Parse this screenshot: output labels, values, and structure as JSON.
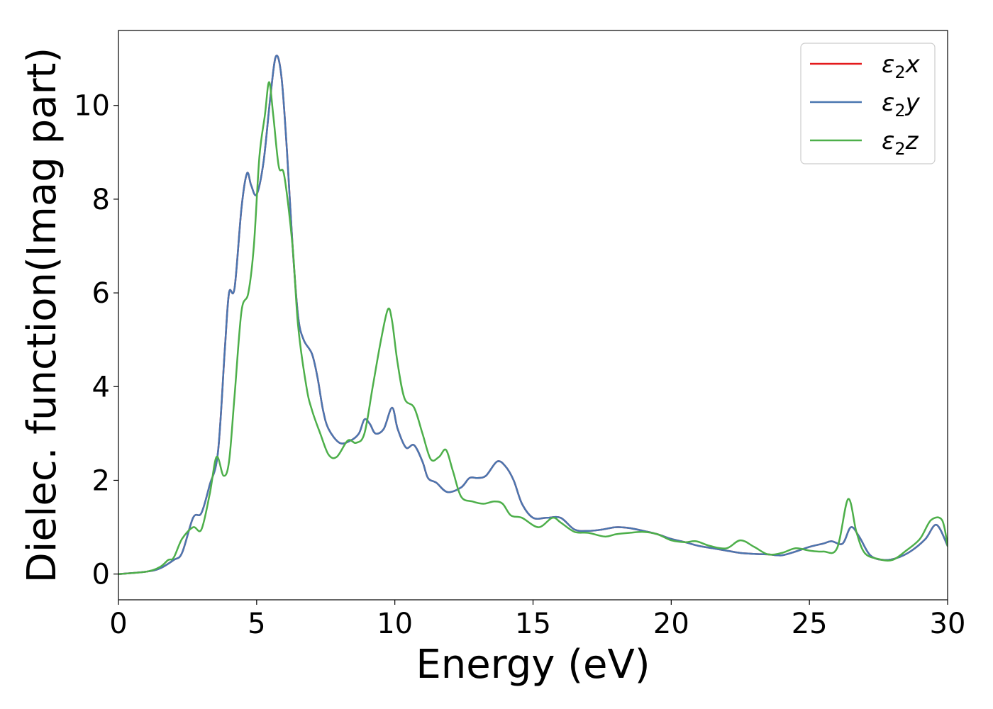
{
  "chart_data": {
    "type": "line",
    "title": "",
    "xlabel": "Energy (eV)",
    "ylabel": "Dielec. function(Imag part)",
    "xlim": [
      0,
      30
    ],
    "ylim": [
      -0.55,
      11.6
    ],
    "xticks": [
      0,
      5,
      10,
      15,
      20,
      25,
      30
    ],
    "yticks": [
      0,
      2,
      4,
      6,
      8,
      10
    ],
    "legend_position": "top-right",
    "grid": false,
    "series": [
      {
        "name": "ε2x",
        "legend_main": "ε",
        "legend_sub": "2",
        "legend_var": "x",
        "color": "#e41a1c",
        "points": [
          [
            0,
            0
          ],
          [
            1,
            0.05
          ],
          [
            1.5,
            0.12
          ],
          [
            2,
            0.3
          ],
          [
            2.3,
            0.45
          ],
          [
            2.7,
            1.2
          ],
          [
            3.0,
            1.3
          ],
          [
            3.3,
            1.9
          ],
          [
            3.6,
            2.6
          ],
          [
            3.85,
            4.8
          ],
          [
            4.0,
            6.0
          ],
          [
            4.2,
            6.1
          ],
          [
            4.45,
            7.8
          ],
          [
            4.65,
            8.55
          ],
          [
            4.8,
            8.3
          ],
          [
            5.0,
            8.1
          ],
          [
            5.25,
            8.8
          ],
          [
            5.5,
            10.2
          ],
          [
            5.7,
            11.05
          ],
          [
            5.9,
            10.6
          ],
          [
            6.1,
            9.0
          ],
          [
            6.3,
            7.0
          ],
          [
            6.5,
            5.5
          ],
          [
            6.7,
            5.0
          ],
          [
            7.0,
            4.7
          ],
          [
            7.2,
            4.2
          ],
          [
            7.4,
            3.5
          ],
          [
            7.6,
            3.1
          ],
          [
            8.0,
            2.8
          ],
          [
            8.4,
            2.85
          ],
          [
            8.7,
            3.0
          ],
          [
            8.9,
            3.3
          ],
          [
            9.1,
            3.2
          ],
          [
            9.3,
            3.0
          ],
          [
            9.6,
            3.1
          ],
          [
            9.9,
            3.55
          ],
          [
            10.1,
            3.1
          ],
          [
            10.4,
            2.7
          ],
          [
            10.7,
            2.75
          ],
          [
            11.0,
            2.4
          ],
          [
            11.2,
            2.05
          ],
          [
            11.5,
            1.95
          ],
          [
            11.9,
            1.75
          ],
          [
            12.4,
            1.85
          ],
          [
            12.7,
            2.05
          ],
          [
            13.0,
            2.05
          ],
          [
            13.3,
            2.1
          ],
          [
            13.7,
            2.4
          ],
          [
            14.0,
            2.3
          ],
          [
            14.3,
            2.0
          ],
          [
            14.6,
            1.5
          ],
          [
            15.0,
            1.2
          ],
          [
            15.5,
            1.2
          ],
          [
            16.0,
            1.2
          ],
          [
            16.5,
            0.95
          ],
          [
            17.0,
            0.92
          ],
          [
            17.5,
            0.95
          ],
          [
            18.0,
            1.0
          ],
          [
            18.5,
            0.98
          ],
          [
            19.0,
            0.92
          ],
          [
            19.5,
            0.85
          ],
          [
            20.0,
            0.75
          ],
          [
            20.5,
            0.68
          ],
          [
            21.0,
            0.6
          ],
          [
            21.5,
            0.55
          ],
          [
            22.0,
            0.5
          ],
          [
            22.5,
            0.45
          ],
          [
            23.0,
            0.43
          ],
          [
            23.5,
            0.42
          ],
          [
            24.0,
            0.4
          ],
          [
            24.5,
            0.48
          ],
          [
            25.0,
            0.58
          ],
          [
            25.5,
            0.65
          ],
          [
            25.8,
            0.7
          ],
          [
            26.2,
            0.65
          ],
          [
            26.5,
            1.0
          ],
          [
            26.8,
            0.8
          ],
          [
            27.2,
            0.4
          ],
          [
            27.7,
            0.3
          ],
          [
            28.2,
            0.35
          ],
          [
            28.7,
            0.5
          ],
          [
            29.2,
            0.75
          ],
          [
            29.6,
            1.05
          ],
          [
            30.0,
            0.6
          ]
        ]
      },
      {
        "name": "ε2y",
        "legend_main": "ε",
        "legend_sub": "2",
        "legend_var": "y",
        "color": "#4a76b0",
        "points": [
          [
            0,
            0
          ],
          [
            1,
            0.05
          ],
          [
            1.5,
            0.12
          ],
          [
            2,
            0.3
          ],
          [
            2.3,
            0.45
          ],
          [
            2.7,
            1.2
          ],
          [
            3.0,
            1.3
          ],
          [
            3.3,
            1.9
          ],
          [
            3.6,
            2.6
          ],
          [
            3.85,
            4.8
          ],
          [
            4.0,
            6.0
          ],
          [
            4.2,
            6.1
          ],
          [
            4.45,
            7.8
          ],
          [
            4.65,
            8.55
          ],
          [
            4.8,
            8.3
          ],
          [
            5.0,
            8.1
          ],
          [
            5.25,
            8.8
          ],
          [
            5.5,
            10.2
          ],
          [
            5.7,
            11.05
          ],
          [
            5.9,
            10.6
          ],
          [
            6.1,
            9.0
          ],
          [
            6.3,
            7.0
          ],
          [
            6.5,
            5.5
          ],
          [
            6.7,
            5.0
          ],
          [
            7.0,
            4.7
          ],
          [
            7.2,
            4.2
          ],
          [
            7.4,
            3.5
          ],
          [
            7.6,
            3.1
          ],
          [
            8.0,
            2.8
          ],
          [
            8.4,
            2.85
          ],
          [
            8.7,
            3.0
          ],
          [
            8.9,
            3.3
          ],
          [
            9.1,
            3.2
          ],
          [
            9.3,
            3.0
          ],
          [
            9.6,
            3.1
          ],
          [
            9.9,
            3.55
          ],
          [
            10.1,
            3.1
          ],
          [
            10.4,
            2.7
          ],
          [
            10.7,
            2.75
          ],
          [
            11.0,
            2.4
          ],
          [
            11.2,
            2.05
          ],
          [
            11.5,
            1.95
          ],
          [
            11.9,
            1.75
          ],
          [
            12.4,
            1.85
          ],
          [
            12.7,
            2.05
          ],
          [
            13.0,
            2.05
          ],
          [
            13.3,
            2.1
          ],
          [
            13.7,
            2.4
          ],
          [
            14.0,
            2.3
          ],
          [
            14.3,
            2.0
          ],
          [
            14.6,
            1.5
          ],
          [
            15.0,
            1.2
          ],
          [
            15.5,
            1.2
          ],
          [
            16.0,
            1.2
          ],
          [
            16.5,
            0.95
          ],
          [
            17.0,
            0.92
          ],
          [
            17.5,
            0.95
          ],
          [
            18.0,
            1.0
          ],
          [
            18.5,
            0.98
          ],
          [
            19.0,
            0.92
          ],
          [
            19.5,
            0.85
          ],
          [
            20.0,
            0.75
          ],
          [
            20.5,
            0.68
          ],
          [
            21.0,
            0.6
          ],
          [
            21.5,
            0.55
          ],
          [
            22.0,
            0.5
          ],
          [
            22.5,
            0.45
          ],
          [
            23.0,
            0.43
          ],
          [
            23.5,
            0.42
          ],
          [
            24.0,
            0.4
          ],
          [
            24.5,
            0.48
          ],
          [
            25.0,
            0.58
          ],
          [
            25.5,
            0.65
          ],
          [
            25.8,
            0.7
          ],
          [
            26.2,
            0.65
          ],
          [
            26.5,
            1.0
          ],
          [
            26.8,
            0.8
          ],
          [
            27.2,
            0.4
          ],
          [
            27.7,
            0.3
          ],
          [
            28.2,
            0.35
          ],
          [
            28.7,
            0.5
          ],
          [
            29.2,
            0.75
          ],
          [
            29.6,
            1.05
          ],
          [
            30.0,
            0.6
          ]
        ]
      },
      {
        "name": "ε2z",
        "legend_main": "ε",
        "legend_sub": "2",
        "legend_var": "z",
        "color": "#4daf4a",
        "points": [
          [
            0,
            0
          ],
          [
            1,
            0.05
          ],
          [
            1.5,
            0.15
          ],
          [
            1.8,
            0.3
          ],
          [
            2.0,
            0.35
          ],
          [
            2.3,
            0.75
          ],
          [
            2.7,
            1.0
          ],
          [
            3.0,
            0.95
          ],
          [
            3.3,
            1.7
          ],
          [
            3.55,
            2.5
          ],
          [
            3.8,
            2.1
          ],
          [
            4.0,
            2.4
          ],
          [
            4.2,
            3.8
          ],
          [
            4.45,
            5.6
          ],
          [
            4.7,
            6.0
          ],
          [
            4.9,
            7.0
          ],
          [
            5.1,
            8.9
          ],
          [
            5.3,
            9.8
          ],
          [
            5.45,
            10.5
          ],
          [
            5.6,
            9.8
          ],
          [
            5.8,
            8.7
          ],
          [
            6.0,
            8.5
          ],
          [
            6.3,
            7.0
          ],
          [
            6.5,
            5.3
          ],
          [
            6.8,
            4.0
          ],
          [
            7.0,
            3.5
          ],
          [
            7.3,
            3.0
          ],
          [
            7.6,
            2.55
          ],
          [
            7.9,
            2.5
          ],
          [
            8.3,
            2.85
          ],
          [
            8.6,
            2.8
          ],
          [
            8.9,
            3.0
          ],
          [
            9.2,
            4.0
          ],
          [
            9.5,
            5.0
          ],
          [
            9.75,
            5.65
          ],
          [
            9.9,
            5.4
          ],
          [
            10.1,
            4.5
          ],
          [
            10.35,
            3.75
          ],
          [
            10.7,
            3.55
          ],
          [
            11.0,
            3.0
          ],
          [
            11.3,
            2.45
          ],
          [
            11.6,
            2.5
          ],
          [
            11.85,
            2.65
          ],
          [
            12.1,
            2.2
          ],
          [
            12.4,
            1.65
          ],
          [
            12.8,
            1.55
          ],
          [
            13.2,
            1.5
          ],
          [
            13.6,
            1.55
          ],
          [
            13.9,
            1.5
          ],
          [
            14.2,
            1.25
          ],
          [
            14.6,
            1.2
          ],
          [
            15.2,
            1.0
          ],
          [
            15.7,
            1.2
          ],
          [
            16.0,
            1.1
          ],
          [
            16.5,
            0.9
          ],
          [
            17.0,
            0.88
          ],
          [
            17.6,
            0.8
          ],
          [
            18.0,
            0.85
          ],
          [
            18.5,
            0.88
          ],
          [
            19.0,
            0.9
          ],
          [
            19.5,
            0.85
          ],
          [
            20.0,
            0.72
          ],
          [
            20.5,
            0.68
          ],
          [
            20.9,
            0.7
          ],
          [
            21.4,
            0.6
          ],
          [
            22.0,
            0.55
          ],
          [
            22.5,
            0.72
          ],
          [
            23.0,
            0.58
          ],
          [
            23.5,
            0.42
          ],
          [
            24.0,
            0.45
          ],
          [
            24.5,
            0.55
          ],
          [
            25.0,
            0.5
          ],
          [
            25.5,
            0.48
          ],
          [
            26.0,
            0.55
          ],
          [
            26.4,
            1.6
          ],
          [
            26.7,
            0.9
          ],
          [
            27.0,
            0.45
          ],
          [
            27.5,
            0.32
          ],
          [
            28.0,
            0.3
          ],
          [
            28.5,
            0.5
          ],
          [
            29.0,
            0.75
          ],
          [
            29.4,
            1.15
          ],
          [
            29.8,
            1.15
          ],
          [
            30.0,
            0.6
          ]
        ]
      }
    ]
  }
}
